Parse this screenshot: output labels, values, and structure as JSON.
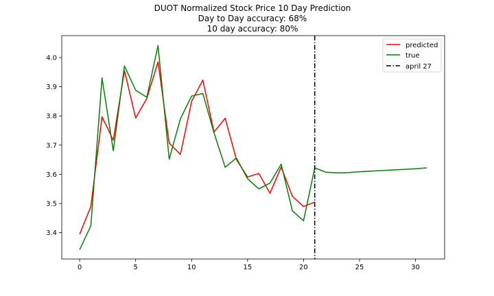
{
  "chart_data": {
    "type": "line",
    "title": "DUOT Normalized Stock Price 10 Day Prediction",
    "subtitle_lines": [
      "Day to Day accuracy: 68%",
      "10 day accuracy: 80%"
    ],
    "xlabel": "",
    "ylabel": "",
    "xlim": [
      -1.6,
      32.6
    ],
    "ylim": [
      3.31,
      4.075
    ],
    "x_ticks": [
      0,
      5,
      10,
      15,
      20,
      25,
      30
    ],
    "y_ticks": [
      3.4,
      3.5,
      3.6,
      3.7,
      3.8,
      3.9,
      4.0
    ],
    "grid": false,
    "legend_position": "top-right",
    "series": [
      {
        "name": "predicted",
        "color": "#ff0000",
        "x": [
          0,
          1,
          2,
          3,
          4,
          5,
          6,
          7,
          8,
          9,
          10,
          11,
          12,
          13,
          14,
          15,
          16,
          17,
          18,
          19,
          20,
          21
        ],
        "y": [
          3.395,
          3.49,
          3.797,
          3.717,
          3.955,
          3.793,
          3.86,
          3.985,
          3.707,
          3.668,
          3.85,
          3.923,
          3.745,
          3.792,
          3.651,
          3.591,
          3.603,
          3.535,
          3.625,
          3.525,
          3.49,
          3.505
        ]
      },
      {
        "name": "true",
        "color": "#008000",
        "x": [
          0,
          1,
          2,
          3,
          4,
          5,
          6,
          7,
          8,
          9,
          10,
          11,
          12,
          13,
          14,
          15,
          16,
          17,
          18,
          19,
          20,
          21,
          22,
          23,
          24,
          25,
          26,
          27,
          28,
          29,
          30,
          31
        ],
        "y": [
          3.342,
          3.424,
          3.93,
          3.681,
          3.971,
          3.888,
          3.864,
          4.041,
          3.652,
          3.79,
          3.868,
          3.877,
          3.742,
          3.624,
          3.656,
          3.585,
          3.55,
          3.57,
          3.635,
          3.475,
          3.441,
          3.622,
          3.607,
          3.605,
          3.606,
          3.609,
          3.611,
          3.613,
          3.615,
          3.617,
          3.619,
          3.622
        ]
      }
    ],
    "vertical_line": {
      "name": "april 27",
      "x": 21,
      "color": "#000000",
      "style": "dashdot"
    }
  }
}
